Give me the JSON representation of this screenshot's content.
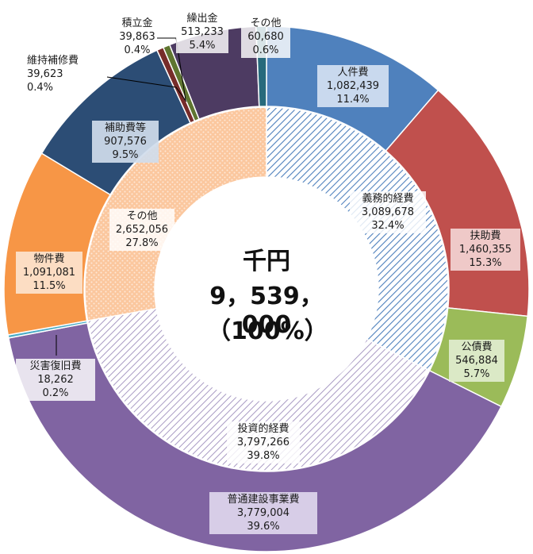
{
  "chart_data": {
    "type": "donut",
    "center": {
      "unit": "千円",
      "total": "9，539，000",
      "percent": "（100%）"
    },
    "inner": [
      {
        "name": "義務的経費",
        "value": "3,089,678",
        "pct": "32.4%",
        "num": 3089678,
        "color": "#4f81bd",
        "pattern": "diag-blue"
      },
      {
        "name": "投資的経費",
        "value": "3,797,266",
        "pct": "39.8%",
        "num": 3797266,
        "color": "#8064a2",
        "pattern": "diag-purple"
      },
      {
        "name": "その他",
        "value": "2,652,056",
        "pct": "27.8%",
        "num": 2652056,
        "color": "#f79646",
        "pattern": "dots-orange"
      }
    ],
    "outer": [
      {
        "name": "人件費",
        "value": "1,082,439",
        "pct": "11.4%",
        "num": 1082439,
        "color": "#4f81bd"
      },
      {
        "name": "扶助費",
        "value": "1,460,355",
        "pct": "15.3%",
        "num": 1460355,
        "color": "#c0504d"
      },
      {
        "name": "公債費",
        "value": "546,884",
        "pct": "5.7%",
        "num": 546884,
        "color": "#9bbb59"
      },
      {
        "name": "普通建設事業費",
        "value": "3,779,004",
        "pct": "39.6%",
        "num": 3779004,
        "color": "#8064a2"
      },
      {
        "name": "災害復旧費",
        "value": "18,262",
        "pct": "0.2%",
        "num": 18262,
        "color": "#4bacc6"
      },
      {
        "name": "物件費",
        "value": "1,091,081",
        "pct": "11.5%",
        "num": 1091081,
        "color": "#f79646"
      },
      {
        "name": "補助費等",
        "value": "907,576",
        "pct": "9.5%",
        "num": 907576,
        "color": "#2c4d75"
      },
      {
        "name": "維持補修費",
        "value": "39,623",
        "pct": "0.4%",
        "num": 39623,
        "color": "#772c2a"
      },
      {
        "name": "積立金",
        "value": "39,863",
        "pct": "0.4%",
        "num": 39863,
        "color": "#5f7530"
      },
      {
        "name": "繰出金",
        "value": "513,233",
        "pct": "5.4%",
        "num": 513233,
        "color": "#4d3b62"
      },
      {
        "name": "その他",
        "value": "60,680",
        "pct": "0.6%",
        "num": 60680,
        "color": "#276a7c"
      }
    ]
  }
}
